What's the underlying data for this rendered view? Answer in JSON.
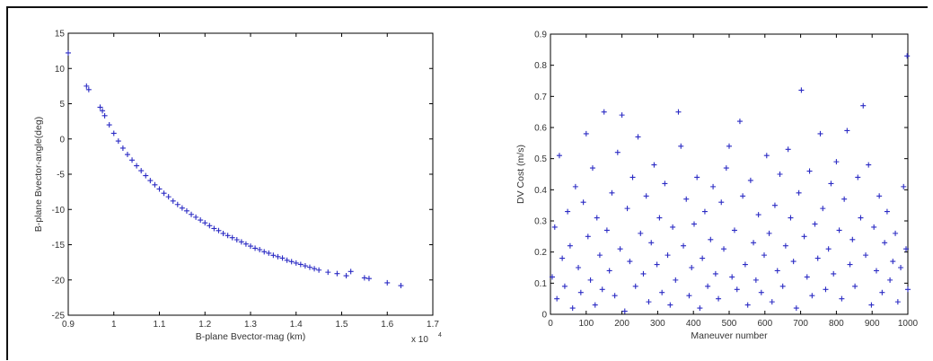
{
  "chart_data": [
    {
      "type": "scatter",
      "xlabel": "B-plane Bvector-mag (km)",
      "ylabel": "B-plane Bvector-angle(deg)",
      "x_multiplier": "x 10",
      "x_exponent": "4",
      "xlim": [
        0.9,
        1.7
      ],
      "ylim": [
        -25,
        15
      ],
      "xticks": [
        "0.9",
        "1",
        "1.1",
        "1.2",
        "1.3",
        "1.4",
        "1.5",
        "1.6",
        "1.7"
      ],
      "yticks": [
        "15",
        "10",
        "5",
        "0",
        "-5",
        "-10",
        "-15",
        "-20",
        "-25"
      ],
      "marker": "+",
      "color": "#2b2bc4",
      "series": [
        {
          "x": [
            0.9,
            0.94,
            0.945,
            0.97,
            0.975,
            0.98,
            0.99,
            1.0,
            1.01,
            1.02,
            1.03,
            1.04,
            1.05,
            1.06,
            1.07,
            1.08,
            1.09,
            1.1,
            1.11,
            1.12,
            1.13,
            1.14,
            1.15,
            1.16,
            1.17,
            1.18,
            1.19,
            1.2,
            1.21,
            1.22,
            1.23,
            1.24,
            1.25,
            1.26,
            1.27,
            1.28,
            1.29,
            1.3,
            1.31,
            1.32,
            1.33,
            1.34,
            1.35,
            1.36,
            1.37,
            1.38,
            1.39,
            1.4,
            1.41,
            1.42,
            1.43,
            1.44,
            1.45,
            1.47,
            1.49,
            1.51,
            1.52,
            1.55,
            1.56,
            1.6,
            1.63
          ],
          "y": [
            12.2,
            7.5,
            7.0,
            4.5,
            4.0,
            3.3,
            2.0,
            0.8,
            -0.3,
            -1.3,
            -2.2,
            -3.0,
            -3.8,
            -4.5,
            -5.2,
            -5.9,
            -6.5,
            -7.1,
            -7.7,
            -8.2,
            -8.8,
            -9.3,
            -9.8,
            -10.2,
            -10.7,
            -11.1,
            -11.5,
            -11.9,
            -12.3,
            -12.7,
            -13.0,
            -13.4,
            -13.7,
            -14.0,
            -14.3,
            -14.6,
            -14.9,
            -15.2,
            -15.5,
            -15.7,
            -16.0,
            -16.2,
            -16.5,
            -16.7,
            -16.9,
            -17.2,
            -17.4,
            -17.6,
            -17.8,
            -18.0,
            -18.2,
            -18.4,
            -18.6,
            -18.9,
            -19.1,
            -19.4,
            -18.8,
            -19.7,
            -19.8,
            -20.4,
            -20.8
          ]
        }
      ]
    },
    {
      "type": "scatter",
      "xlabel": "Maneuver number",
      "ylabel": "DV Cost (m/s)",
      "xlim": [
        0,
        1000
      ],
      "ylim": [
        0,
        0.9
      ],
      "xticks": [
        "0",
        "100",
        "200",
        "300",
        "400",
        "500",
        "600",
        "700",
        "800",
        "900",
        "1000"
      ],
      "yticks": [
        "0.9",
        "0.8",
        "0.7",
        "0.6",
        "0.5",
        "0.4",
        "0.3",
        "0.2",
        "0.1",
        "0"
      ],
      "marker": "+",
      "color": "#2b2bc4",
      "series": [
        {
          "x": [
            5,
            12,
            18,
            25,
            33,
            40,
            48,
            55,
            62,
            70,
            78,
            85,
            92,
            100,
            105,
            112,
            118,
            125,
            130,
            138,
            145,
            150,
            158,
            165,
            172,
            180,
            188,
            195,
            200,
            208,
            215,
            222,
            230,
            238,
            245,
            252,
            260,
            268,
            275,
            282,
            290,
            298,
            305,
            312,
            320,
            328,
            335,
            342,
            350,
            358,
            365,
            372,
            380,
            388,
            395,
            402,
            410,
            418,
            425,
            432,
            440,
            448,
            455,
            462,
            470,
            478,
            485,
            492,
            500,
            508,
            515,
            522,
            530,
            538,
            545,
            552,
            560,
            568,
            575,
            582,
            590,
            598,
            605,
            612,
            620,
            628,
            635,
            642,
            650,
            658,
            665,
            672,
            680,
            688,
            695,
            702,
            710,
            718,
            725,
            732,
            740,
            748,
            755,
            762,
            770,
            778,
            785,
            792,
            800,
            808,
            815,
            822,
            830,
            838,
            845,
            852,
            860,
            868,
            875,
            882,
            890,
            898,
            905,
            912,
            920,
            928,
            935,
            942,
            950,
            958,
            965,
            972,
            980,
            988,
            995,
            998,
            1000
          ],
          "y": [
            0.12,
            0.28,
            0.05,
            0.51,
            0.18,
            0.09,
            0.33,
            0.22,
            0.02,
            0.41,
            0.15,
            0.07,
            0.36,
            0.58,
            0.25,
            0.11,
            0.47,
            0.03,
            0.31,
            0.19,
            0.08,
            0.65,
            0.27,
            0.14,
            0.39,
            0.06,
            0.52,
            0.21,
            0.64,
            0.01,
            0.34,
            0.17,
            0.44,
            0.09,
            0.57,
            0.26,
            0.13,
            0.38,
            0.04,
            0.23,
            0.48,
            0.16,
            0.31,
            0.07,
            0.42,
            0.19,
            0.03,
            0.28,
            0.11,
            0.65,
            0.54,
            0.22,
            0.37,
            0.06,
            0.15,
            0.29,
            0.44,
            0.02,
            0.18,
            0.33,
            0.09,
            0.24,
            0.41,
            0.13,
            0.05,
            0.36,
            0.21,
            0.47,
            0.54,
            0.12,
            0.27,
            0.08,
            0.62,
            0.38,
            0.16,
            0.03,
            0.43,
            0.23,
            0.11,
            0.32,
            0.07,
            0.19,
            0.51,
            0.26,
            0.04,
            0.35,
            0.14,
            0.45,
            0.09,
            0.22,
            0.53,
            0.31,
            0.17,
            0.02,
            0.39,
            0.72,
            0.25,
            0.12,
            0.46,
            0.06,
            0.29,
            0.18,
            0.58,
            0.34,
            0.08,
            0.21,
            0.42,
            0.13,
            0.49,
            0.27,
            0.05,
            0.37,
            0.59,
            0.16,
            0.24,
            0.09,
            0.44,
            0.31,
            0.67,
            0.19,
            0.48,
            0.03,
            0.28,
            0.14,
            0.38,
            0.07,
            0.23,
            0.33,
            0.11,
            0.17,
            0.26,
            0.04,
            0.15,
            0.41,
            0.21,
            0.83,
            0.08
          ]
        }
      ]
    }
  ]
}
